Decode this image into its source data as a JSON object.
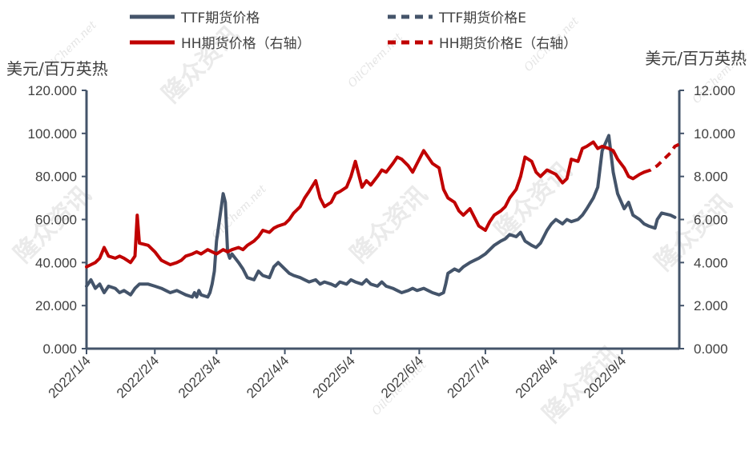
{
  "chart_data": {
    "type": "line",
    "y_left_label": "美元/百万英热",
    "y_right_label": "美元/百万英热",
    "ylim_left": [
      0,
      120
    ],
    "ylim_right": [
      0,
      12
    ],
    "y_left_ticks": [
      "0.000",
      "20.000",
      "40.000",
      "60.000",
      "80.000",
      "100.000",
      "120.000"
    ],
    "y_right_ticks": [
      "0.000",
      "2.000",
      "4.000",
      "6.000",
      "8.000",
      "10.000",
      "12.000"
    ],
    "x_ticks": [
      "2022/1/4",
      "2022/2/4",
      "2022/3/4",
      "2022/4/4",
      "2022/5/4",
      "2022/6/4",
      "2022/7/4",
      "2022/8/4",
      "2022/9/4"
    ],
    "x_start": "2022/1/4",
    "x_end": "2022/9/30",
    "grid": false,
    "legend_position": "top",
    "watermarks": [
      "隆众资讯",
      "OilChem.net"
    ],
    "series": [
      {
        "name": "TTF期货价格",
        "axis": "left",
        "color": "#44546a",
        "style": "solid",
        "points": [
          [
            "2022/1/4",
            29
          ],
          [
            "2022/1/6",
            32
          ],
          [
            "2022/1/8",
            28
          ],
          [
            "2022/1/10",
            30
          ],
          [
            "2022/1/12",
            26
          ],
          [
            "2022/1/14",
            29
          ],
          [
            "2022/1/17",
            28
          ],
          [
            "2022/1/19",
            26
          ],
          [
            "2022/1/21",
            27
          ],
          [
            "2022/1/24",
            25
          ],
          [
            "2022/1/26",
            28
          ],
          [
            "2022/1/28",
            30
          ],
          [
            "2022/2/1",
            30
          ],
          [
            "2022/2/4",
            29
          ],
          [
            "2022/2/7",
            28
          ],
          [
            "2022/2/9",
            27
          ],
          [
            "2022/2/11",
            26
          ],
          [
            "2022/2/14",
            27
          ],
          [
            "2022/2/16",
            26
          ],
          [
            "2022/2/18",
            25
          ],
          [
            "2022/2/21",
            24
          ],
          [
            "2022/2/22",
            26
          ],
          [
            "2022/2/23",
            24
          ],
          [
            "2022/2/24",
            27
          ],
          [
            "2022/2/25",
            25
          ],
          [
            "2022/2/28",
            24
          ],
          [
            "2022/3/1",
            26
          ],
          [
            "2022/3/2",
            30
          ],
          [
            "2022/3/3",
            36
          ],
          [
            "2022/3/4",
            50
          ],
          [
            "2022/3/7",
            72
          ],
          [
            "2022/3/8",
            68
          ],
          [
            "2022/3/9",
            45
          ],
          [
            "2022/3/10",
            42
          ],
          [
            "2022/3/11",
            44
          ],
          [
            "2022/3/14",
            40
          ],
          [
            "2022/3/16",
            37
          ],
          [
            "2022/3/18",
            33
          ],
          [
            "2022/3/21",
            32
          ],
          [
            "2022/3/23",
            36
          ],
          [
            "2022/3/25",
            34
          ],
          [
            "2022/3/28",
            33
          ],
          [
            "2022/3/30",
            38
          ],
          [
            "2022/4/1",
            40
          ],
          [
            "2022/4/4",
            37
          ],
          [
            "2022/4/6",
            35
          ],
          [
            "2022/4/8",
            34
          ],
          [
            "2022/4/11",
            33
          ],
          [
            "2022/4/13",
            32
          ],
          [
            "2022/4/15",
            31
          ],
          [
            "2022/4/18",
            32
          ],
          [
            "2022/4/20",
            30
          ],
          [
            "2022/4/22",
            31
          ],
          [
            "2022/4/25",
            30
          ],
          [
            "2022/4/27",
            29
          ],
          [
            "2022/4/29",
            31
          ],
          [
            "2022/5/2",
            30
          ],
          [
            "2022/5/4",
            32
          ],
          [
            "2022/5/6",
            31
          ],
          [
            "2022/5/9",
            30
          ],
          [
            "2022/5/11",
            32
          ],
          [
            "2022/5/13",
            30
          ],
          [
            "2022/5/16",
            29
          ],
          [
            "2022/5/18",
            31
          ],
          [
            "2022/5/20",
            29
          ],
          [
            "2022/5/23",
            28
          ],
          [
            "2022/5/25",
            27
          ],
          [
            "2022/5/27",
            26
          ],
          [
            "2022/5/30",
            27
          ],
          [
            "2022/6/1",
            28
          ],
          [
            "2022/6/3",
            27
          ],
          [
            "2022/6/6",
            28
          ],
          [
            "2022/6/8",
            27
          ],
          [
            "2022/6/10",
            26
          ],
          [
            "2022/6/13",
            25
          ],
          [
            "2022/6/15",
            26
          ],
          [
            "2022/6/16",
            30
          ],
          [
            "2022/6/17",
            35
          ],
          [
            "2022/6/20",
            37
          ],
          [
            "2022/6/22",
            36
          ],
          [
            "2022/6/24",
            38
          ],
          [
            "2022/6/27",
            40
          ],
          [
            "2022/6/29",
            41
          ],
          [
            "2022/7/1",
            42
          ],
          [
            "2022/7/4",
            44
          ],
          [
            "2022/7/6",
            46
          ],
          [
            "2022/7/8",
            48
          ],
          [
            "2022/7/11",
            50
          ],
          [
            "2022/7/13",
            51
          ],
          [
            "2022/7/15",
            53
          ],
          [
            "2022/7/18",
            52
          ],
          [
            "2022/7/20",
            54
          ],
          [
            "2022/7/22",
            50
          ],
          [
            "2022/7/25",
            48
          ],
          [
            "2022/7/27",
            47
          ],
          [
            "2022/7/29",
            49
          ],
          [
            "2022/8/1",
            55
          ],
          [
            "2022/8/3",
            58
          ],
          [
            "2022/8/5",
            60
          ],
          [
            "2022/8/8",
            58
          ],
          [
            "2022/8/10",
            60
          ],
          [
            "2022/8/12",
            59
          ],
          [
            "2022/8/15",
            60
          ],
          [
            "2022/8/17",
            62
          ],
          [
            "2022/8/19",
            65
          ],
          [
            "2022/8/22",
            70
          ],
          [
            "2022/8/24",
            75
          ],
          [
            "2022/8/26",
            92
          ],
          [
            "2022/8/29",
            99
          ],
          [
            "2022/8/31",
            82
          ],
          [
            "2022/9/2",
            72
          ],
          [
            "2022/9/5",
            65
          ],
          [
            "2022/9/7",
            68
          ],
          [
            "2022/9/9",
            62
          ],
          [
            "2022/9/12",
            60
          ],
          [
            "2022/9/14",
            58
          ],
          [
            "2022/9/16",
            57
          ],
          [
            "2022/9/19",
            56
          ],
          [
            "2022/9/20",
            60
          ],
          [
            "2022/9/22",
            63
          ],
          [
            "2022/9/26",
            62
          ],
          [
            "2022/9/28",
            61
          ]
        ]
      },
      {
        "name": "TTF期货价格E",
        "axis": "left",
        "color": "#44546a",
        "style": "dashed",
        "points": []
      },
      {
        "name": "HH期货价格（右轴）",
        "axis": "right",
        "color": "#c00000",
        "style": "solid",
        "points": [
          [
            "2022/1/4",
            3.8
          ],
          [
            "2022/1/6",
            3.9
          ],
          [
            "2022/1/8",
            4.0
          ],
          [
            "2022/1/10",
            4.2
          ],
          [
            "2022/1/12",
            4.7
          ],
          [
            "2022/1/14",
            4.3
          ],
          [
            "2022/1/17",
            4.2
          ],
          [
            "2022/1/19",
            4.3
          ],
          [
            "2022/1/21",
            4.2
          ],
          [
            "2022/1/24",
            4.0
          ],
          [
            "2022/1/26",
            4.3
          ],
          [
            "2022/1/27",
            6.2
          ],
          [
            "2022/1/28",
            4.9
          ],
          [
            "2022/2/1",
            4.8
          ],
          [
            "2022/2/4",
            4.5
          ],
          [
            "2022/2/7",
            4.1
          ],
          [
            "2022/2/9",
            4.0
          ],
          [
            "2022/2/11",
            3.9
          ],
          [
            "2022/2/14",
            4.0
          ],
          [
            "2022/2/16",
            4.1
          ],
          [
            "2022/2/18",
            4.3
          ],
          [
            "2022/2/21",
            4.4
          ],
          [
            "2022/2/23",
            4.5
          ],
          [
            "2022/2/25",
            4.4
          ],
          [
            "2022/2/28",
            4.6
          ],
          [
            "2022/3/2",
            4.5
          ],
          [
            "2022/3/4",
            4.4
          ],
          [
            "2022/3/7",
            4.6
          ],
          [
            "2022/3/9",
            4.5
          ],
          [
            "2022/3/11",
            4.6
          ],
          [
            "2022/3/14",
            4.7
          ],
          [
            "2022/3/16",
            4.6
          ],
          [
            "2022/3/18",
            4.8
          ],
          [
            "2022/3/21",
            5.0
          ],
          [
            "2022/3/23",
            5.2
          ],
          [
            "2022/3/25",
            5.5
          ],
          [
            "2022/3/28",
            5.4
          ],
          [
            "2022/3/30",
            5.6
          ],
          [
            "2022/4/1",
            5.7
          ],
          [
            "2022/4/4",
            5.8
          ],
          [
            "2022/4/6",
            6.0
          ],
          [
            "2022/4/8",
            6.3
          ],
          [
            "2022/4/11",
            6.6
          ],
          [
            "2022/4/13",
            7.0
          ],
          [
            "2022/4/15",
            7.3
          ],
          [
            "2022/4/18",
            7.8
          ],
          [
            "2022/4/20",
            7.0
          ],
          [
            "2022/4/22",
            6.6
          ],
          [
            "2022/4/25",
            6.8
          ],
          [
            "2022/4/27",
            7.2
          ],
          [
            "2022/4/29",
            7.3
          ],
          [
            "2022/5/2",
            7.5
          ],
          [
            "2022/5/4",
            8.0
          ],
          [
            "2022/5/6",
            8.7
          ],
          [
            "2022/5/9",
            7.5
          ],
          [
            "2022/5/11",
            7.8
          ],
          [
            "2022/5/13",
            7.6
          ],
          [
            "2022/5/16",
            8.0
          ],
          [
            "2022/5/18",
            8.3
          ],
          [
            "2022/5/20",
            8.2
          ],
          [
            "2022/5/23",
            8.6
          ],
          [
            "2022/5/25",
            8.9
          ],
          [
            "2022/5/27",
            8.8
          ],
          [
            "2022/5/30",
            8.5
          ],
          [
            "2022/6/1",
            8.2
          ],
          [
            "2022/6/3",
            8.6
          ],
          [
            "2022/6/6",
            9.2
          ],
          [
            "2022/6/8",
            8.9
          ],
          [
            "2022/6/10",
            8.6
          ],
          [
            "2022/6/13",
            8.4
          ],
          [
            "2022/6/15",
            7.4
          ],
          [
            "2022/6/17",
            7.0
          ],
          [
            "2022/6/20",
            6.8
          ],
          [
            "2022/6/22",
            6.4
          ],
          [
            "2022/6/24",
            6.2
          ],
          [
            "2022/6/27",
            6.5
          ],
          [
            "2022/6/29",
            6.1
          ],
          [
            "2022/7/1",
            5.7
          ],
          [
            "2022/7/4",
            5.5
          ],
          [
            "2022/7/6",
            5.9
          ],
          [
            "2022/7/8",
            6.2
          ],
          [
            "2022/7/11",
            6.4
          ],
          [
            "2022/7/13",
            6.6
          ],
          [
            "2022/7/15",
            7.0
          ],
          [
            "2022/7/18",
            7.4
          ],
          [
            "2022/7/20",
            8.0
          ],
          [
            "2022/7/22",
            8.9
          ],
          [
            "2022/7/25",
            8.7
          ],
          [
            "2022/7/27",
            8.2
          ],
          [
            "2022/7/29",
            8.0
          ],
          [
            "2022/8/1",
            8.3
          ],
          [
            "2022/8/3",
            8.2
          ],
          [
            "2022/8/5",
            8.1
          ],
          [
            "2022/8/8",
            7.7
          ],
          [
            "2022/8/10",
            7.9
          ],
          [
            "2022/8/12",
            8.8
          ],
          [
            "2022/8/15",
            8.7
          ],
          [
            "2022/8/17",
            9.3
          ],
          [
            "2022/8/19",
            9.4
          ],
          [
            "2022/8/22",
            9.6
          ],
          [
            "2022/8/24",
            9.3
          ],
          [
            "2022/8/26",
            9.4
          ],
          [
            "2022/8/29",
            9.3
          ],
          [
            "2022/8/31",
            9.2
          ],
          [
            "2022/9/2",
            8.8
          ],
          [
            "2022/9/5",
            8.4
          ],
          [
            "2022/9/7",
            8.0
          ],
          [
            "2022/9/9",
            7.9
          ],
          [
            "2022/9/12",
            8.1
          ],
          [
            "2022/9/14",
            8.2
          ]
        ]
      },
      {
        "name": "HH期货价格E（右轴）",
        "axis": "right",
        "color": "#c00000",
        "style": "dashed",
        "points": [
          [
            "2022/9/14",
            8.2
          ],
          [
            "2022/9/17",
            8.3
          ],
          [
            "2022/9/20",
            8.5
          ],
          [
            "2022/9/23",
            8.8
          ],
          [
            "2022/9/26",
            9.1
          ],
          [
            "2022/9/28",
            9.4
          ],
          [
            "2022/9/30",
            9.5
          ]
        ]
      }
    ]
  }
}
